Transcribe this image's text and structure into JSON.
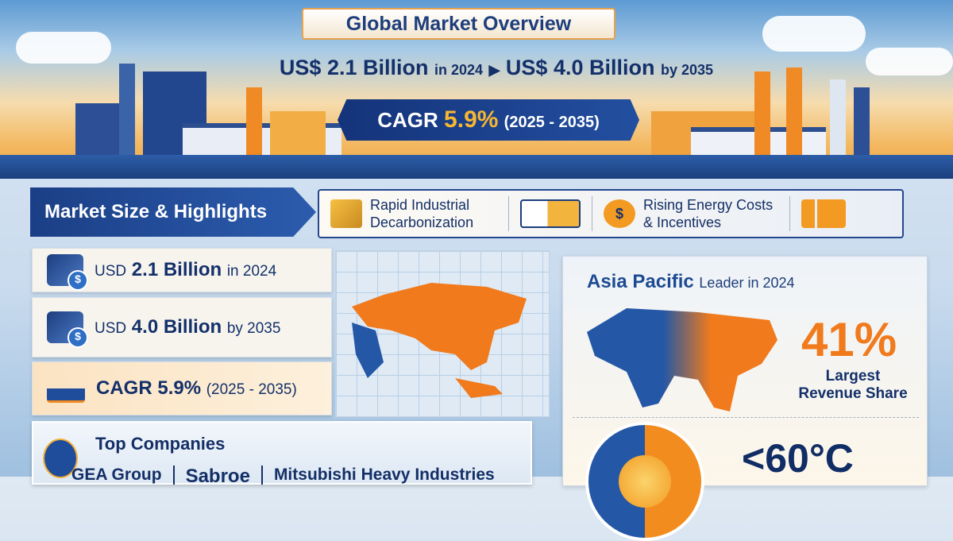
{
  "header": {
    "title": "Global Market Overview",
    "value_2024": "US$ 2.1 Billion",
    "year_2024": "in 2024",
    "arrow": "▶",
    "value_2035": "US$ 4.0 Billion",
    "year_2035": "by 2035",
    "cagr_label": "CAGR",
    "cagr_value": "5.9%",
    "cagr_period": "(2025 - 2035)"
  },
  "highlights": {
    "section_title": "Market Size & Highlights",
    "drivers": [
      {
        "label": "Rapid Industrial Decarbonization",
        "icon": "factory-coins-icon"
      },
      {
        "label": "",
        "icon": "building-bulb-icon"
      },
      {
        "label": "Rising Energy Costs & Incentives",
        "icon": "dollar-coin-icon"
      },
      {
        "label": "",
        "icon": "bar-chart-growth-icon"
      }
    ],
    "cards": [
      {
        "prefix": "USD",
        "value": "2.1 Billion",
        "suffix": "in 2024",
        "icon": "money-stack-icon"
      },
      {
        "prefix": "USD",
        "value": "4.0 Billion",
        "suffix": "by 2035",
        "icon": "coin-stack-icon"
      },
      {
        "prefix": "CAGR",
        "value": "5.9%",
        "suffix": "(2025 - 2035)",
        "icon": "growth-chart-icon"
      }
    ]
  },
  "region": {
    "name": "Asia Pacific",
    "subtitle": "Leader in 2024",
    "share": "41%",
    "share_label": "Largest Revenue Share",
    "temperature": "<60°C"
  },
  "companies": {
    "title": "Top Companies",
    "list": [
      "GEA Group",
      "Sabroe",
      "Mitsubishi Heavy Industries"
    ]
  },
  "colors": {
    "navy": "#14337a",
    "orange": "#f07a1c",
    "accent_yellow": "#f7b731"
  }
}
